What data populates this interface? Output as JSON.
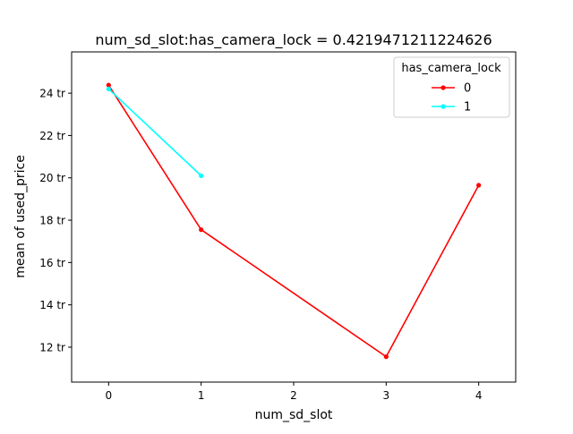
{
  "chart_data": {
    "type": "line",
    "title": "num_sd_slot:has_camera_lock = 0.4219471211224626",
    "xlabel": "num_sd_slot",
    "ylabel": "mean of used_price",
    "xlim": [
      -0.4,
      4.4
    ],
    "ylim": [
      10.35,
      25.95
    ],
    "x_ticks": [
      {
        "value": 0,
        "label": "0"
      },
      {
        "value": 1,
        "label": "1"
      },
      {
        "value": 2,
        "label": "2"
      },
      {
        "value": 3,
        "label": "3"
      },
      {
        "value": 4,
        "label": "4"
      }
    ],
    "y_ticks": [
      {
        "value": 12,
        "label": "12 tr"
      },
      {
        "value": 14,
        "label": "14 tr"
      },
      {
        "value": 16,
        "label": "16 tr"
      },
      {
        "value": 18,
        "label": "18 tr"
      },
      {
        "value": 20,
        "label": "20 tr"
      },
      {
        "value": 22,
        "label": "22 tr"
      },
      {
        "value": 24,
        "label": "24 tr"
      }
    ],
    "grid": false,
    "legend": {
      "title": "has_camera_lock",
      "placement": "top-right"
    },
    "series": [
      {
        "name": "0",
        "color": "#ff0000",
        "x": [
          0,
          1,
          3,
          4
        ],
        "y": [
          24.38,
          17.55,
          11.55,
          19.65
        ]
      },
      {
        "name": "1",
        "color": "#00ffff",
        "x": [
          0,
          1
        ],
        "y": [
          24.2,
          20.1
        ]
      }
    ]
  }
}
